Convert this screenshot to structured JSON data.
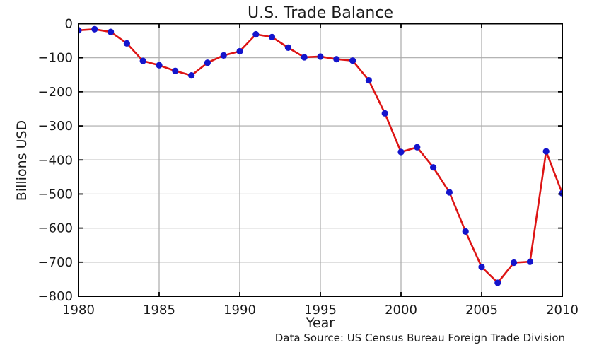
{
  "chart_data": {
    "type": "line",
    "title": "U.S. Trade Balance",
    "xlabel": "Year",
    "ylabel": "Billions USD",
    "caption": "Data Source: US Census Bureau Foreign Trade Division",
    "x": [
      1980,
      1981,
      1982,
      1983,
      1984,
      1985,
      1986,
      1987,
      1988,
      1989,
      1990,
      1991,
      1992,
      1993,
      1994,
      1995,
      1996,
      1997,
      1998,
      1999,
      2000,
      2001,
      2002,
      2003,
      2004,
      2005,
      2006,
      2007,
      2008,
      2009,
      2010
    ],
    "values": [
      -19.4,
      -16.2,
      -24.2,
      -57.8,
      -109.1,
      -121.9,
      -138.5,
      -151.7,
      -114.6,
      -93.1,
      -80.9,
      -31.1,
      -39.2,
      -70.3,
      -98.5,
      -96.4,
      -104.1,
      -108.3,
      -166.1,
      -263.2,
      -376.7,
      -362.7,
      -421.7,
      -494.9,
      -609.9,
      -714.2,
      -760.4,
      -701.4,
      -698.8,
      -374.9,
      -497.8
    ],
    "xlim": [
      1980,
      2010
    ],
    "ylim": [
      -800,
      0
    ],
    "xticks": [
      1980,
      1985,
      1990,
      1995,
      2000,
      2005,
      2010
    ],
    "yticks": [
      0,
      -100,
      -200,
      -300,
      -400,
      -500,
      -600,
      -700,
      -800
    ],
    "grid": true,
    "legend": "none",
    "line_color": "#dd1414",
    "marker_color": "#1414cc",
    "grid_color": "#aaaaaa",
    "spine_color": "#000000",
    "tick_label_color": "#1a1a1a",
    "background": "#ffffff"
  }
}
